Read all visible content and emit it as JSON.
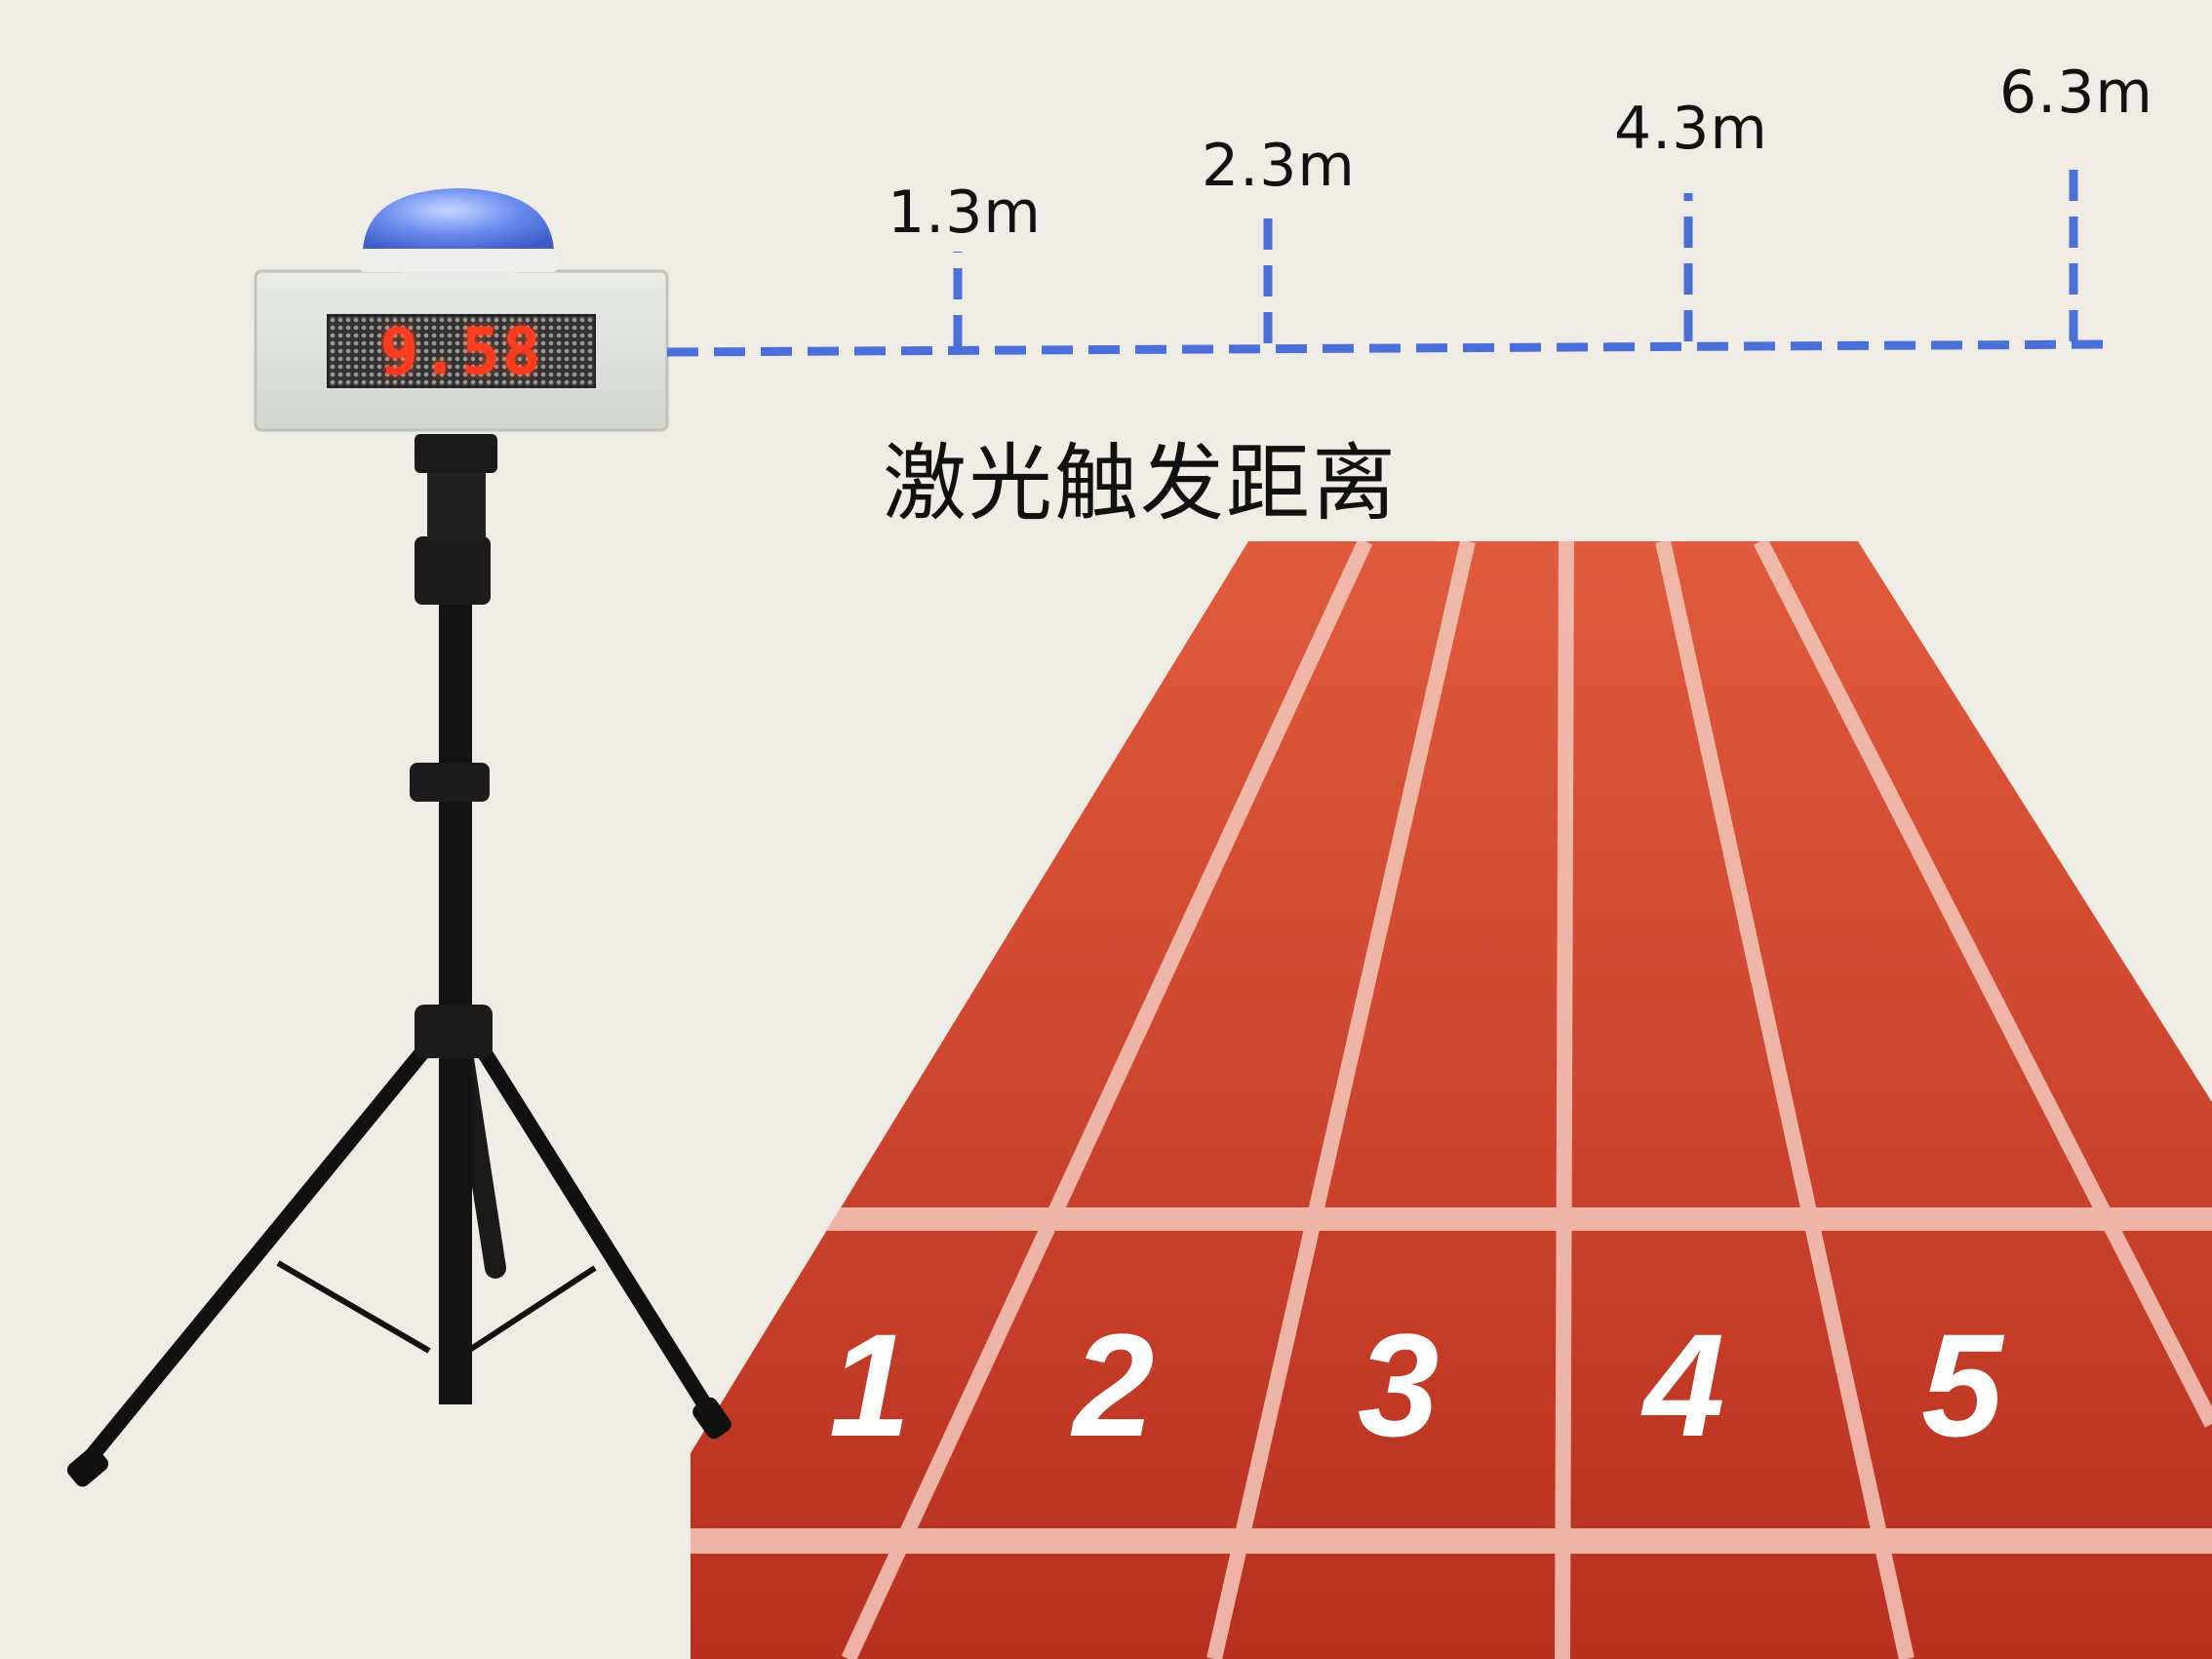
{
  "distance_markers": [
    {
      "label": "1.3m"
    },
    {
      "label": "2.3m"
    },
    {
      "label": "4.3m"
    },
    {
      "label": "6.3m"
    }
  ],
  "caption": "激光触发距离",
  "display_value": "9.58",
  "lane_numbers": [
    "1",
    "2",
    "3",
    "4",
    "5"
  ],
  "colors": {
    "background": "#efece6",
    "track": "#d44a33",
    "laser_line": "#4a6fd8",
    "led": "#ff3b1f",
    "dome": "#5b7fe0"
  }
}
